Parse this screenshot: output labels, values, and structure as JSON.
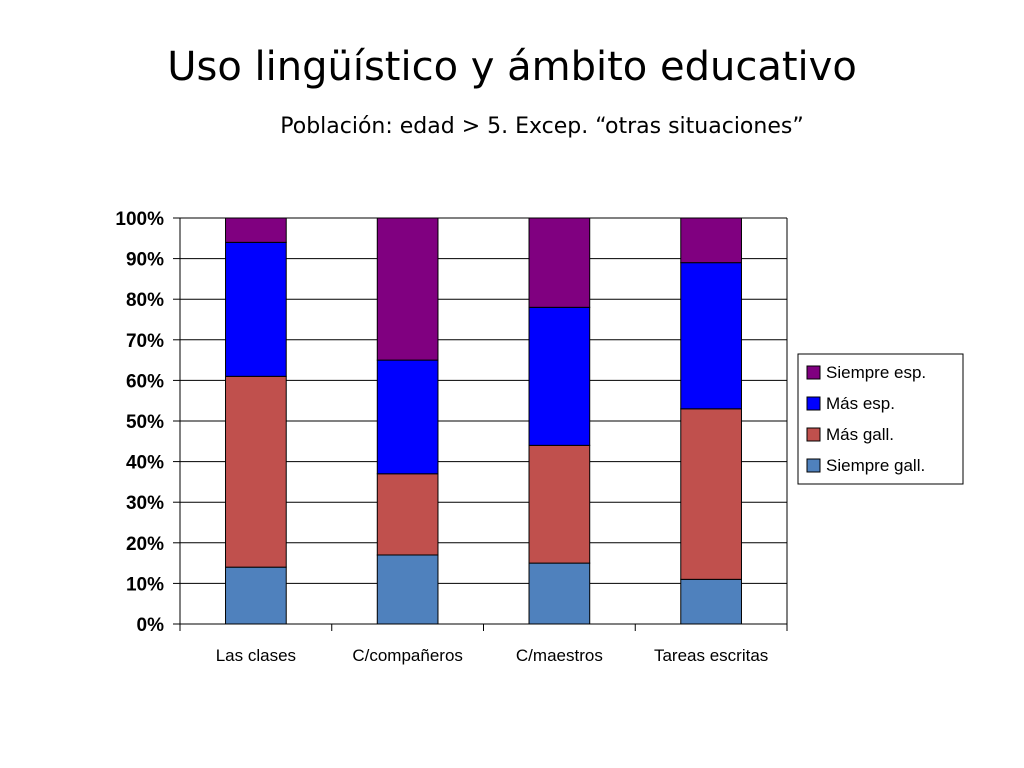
{
  "slide": {
    "title": "Uso lingüístico y ámbito educativo",
    "subtitle": "Población: edad  > 5. Excep. “otras situaciones”"
  },
  "chart_data": {
    "type": "bar",
    "stacked": true,
    "percent_stacked": true,
    "categories": [
      "Las clases",
      "C/compañeros",
      "C/maestros",
      "Tareas escritas"
    ],
    "series": [
      {
        "name": "Siempre gall.",
        "color": "#4f81bd",
        "values": [
          14,
          17,
          15,
          11
        ]
      },
      {
        "name": "Más gall.",
        "color": "#c0504d",
        "values": [
          47,
          20,
          29,
          42
        ]
      },
      {
        "name": "Más esp.",
        "color": "#0000ff",
        "values": [
          33,
          28,
          34,
          36
        ]
      },
      {
        "name": "Siempre esp.",
        "color": "#800080",
        "values": [
          6,
          35,
          22,
          11
        ]
      }
    ],
    "ylim": [
      0,
      100
    ],
    "yticks": [
      "0%",
      "10%",
      "20%",
      "30%",
      "40%",
      "50%",
      "60%",
      "70%",
      "80%",
      "90%",
      "100%"
    ],
    "grid": true,
    "legend": "right",
    "legend_order": [
      "Siempre esp.",
      "Más esp.",
      "Más gall.",
      "Siempre gall."
    ]
  }
}
